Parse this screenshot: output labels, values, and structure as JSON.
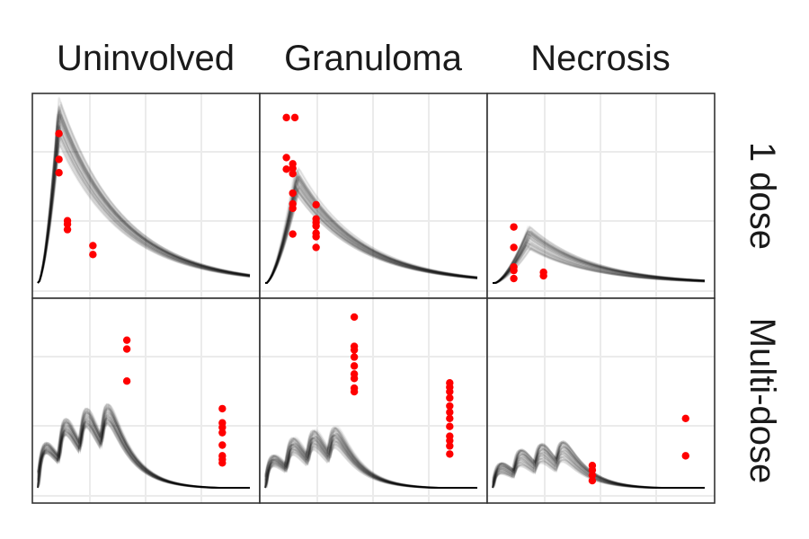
{
  "chart_data": {
    "type": "line",
    "column_labels": [
      "Uninvolved",
      "Granuloma",
      "Necrosis"
    ],
    "row_labels": [
      "1 dose",
      "Multi-dose"
    ],
    "colors": {
      "observed": "#ff0000",
      "simulated": "#000000",
      "grid": "#ebebeb",
      "frame": "#333333"
    },
    "grid": true,
    "xlim": [
      0,
      1
    ],
    "ylim": [
      0,
      1
    ],
    "simulation": {
      "n_curves": 60
    },
    "panels": [
      {
        "row": "1 dose",
        "column": "Uninvolved",
        "xlim": [
          0,
          1
        ],
        "ylim": [
          0,
          1
        ],
        "observed": [
          {
            "x": 0.1,
            "y": 0.845
          },
          {
            "x": 0.1,
            "y": 0.7
          },
          {
            "x": 0.1,
            "y": 0.625
          },
          {
            "x": 0.14,
            "y": 0.355
          },
          {
            "x": 0.14,
            "y": 0.335
          },
          {
            "x": 0.14,
            "y": 0.305
          },
          {
            "x": 0.26,
            "y": 0.215
          },
          {
            "x": 0.26,
            "y": 0.165
          }
        ],
        "model": {
          "type": "single",
          "peak_x": 0.1,
          "peak_y": 0.92,
          "rise": 3.0,
          "decay": 2.2,
          "spread": 0.08
        }
      },
      {
        "row": "1 dose",
        "column": "Granuloma",
        "xlim": [
          0,
          1
        ],
        "ylim": [
          0,
          1
        ],
        "observed": [
          {
            "x": 0.1,
            "y": 0.935
          },
          {
            "x": 0.14,
            "y": 0.935
          },
          {
            "x": 0.1,
            "y": 0.71
          },
          {
            "x": 0.13,
            "y": 0.675
          },
          {
            "x": 0.13,
            "y": 0.65
          },
          {
            "x": 0.1,
            "y": 0.645
          },
          {
            "x": 0.13,
            "y": 0.62
          },
          {
            "x": 0.13,
            "y": 0.51
          },
          {
            "x": 0.13,
            "y": 0.45
          },
          {
            "x": 0.13,
            "y": 0.425
          },
          {
            "x": 0.13,
            "y": 0.28
          },
          {
            "x": 0.24,
            "y": 0.445
          },
          {
            "x": 0.24,
            "y": 0.365
          },
          {
            "x": 0.24,
            "y": 0.345
          },
          {
            "x": 0.24,
            "y": 0.325
          },
          {
            "x": 0.24,
            "y": 0.285
          },
          {
            "x": 0.24,
            "y": 0.265
          },
          {
            "x": 0.24,
            "y": 0.205
          }
        ],
        "model": {
          "type": "single",
          "peak_x": 0.15,
          "peak_y": 0.58,
          "rise": 3.0,
          "decay": 2.2,
          "spread": 0.08
        }
      },
      {
        "row": "1 dose",
        "column": "Necrosis",
        "xlim": [
          0,
          1
        ],
        "ylim": [
          0,
          1
        ],
        "observed": [
          {
            "x": 0.1,
            "y": 0.32
          },
          {
            "x": 0.1,
            "y": 0.205
          },
          {
            "x": 0.1,
            "y": 0.095
          },
          {
            "x": 0.1,
            "y": 0.075
          },
          {
            "x": 0.1,
            "y": 0.03
          },
          {
            "x": 0.24,
            "y": 0.065
          },
          {
            "x": 0.24,
            "y": 0.045
          }
        ],
        "model": {
          "type": "single",
          "peak_x": 0.17,
          "peak_y": 0.26,
          "rise": 3.0,
          "decay": 2.2,
          "spread": 0.14
        }
      },
      {
        "row": "Multi-dose",
        "column": "Uninvolved",
        "xlim": [
          0,
          1
        ],
        "ylim": [
          0,
          1
        ],
        "observed": [
          {
            "x": 0.42,
            "y": 0.835
          },
          {
            "x": 0.42,
            "y": 0.785
          },
          {
            "x": 0.42,
            "y": 0.605
          },
          {
            "x": 0.87,
            "y": 0.45
          },
          {
            "x": 0.87,
            "y": 0.37
          },
          {
            "x": 0.87,
            "y": 0.345
          },
          {
            "x": 0.87,
            "y": 0.315
          },
          {
            "x": 0.87,
            "y": 0.245
          },
          {
            "x": 0.87,
            "y": 0.185
          },
          {
            "x": 0.87,
            "y": 0.165
          },
          {
            "x": 0.87,
            "y": 0.145
          }
        ],
        "model": {
          "type": "multi",
          "doses": 4,
          "interval": 0.1,
          "amp": 0.9,
          "decay": 1.1,
          "spread": 0.08
        }
      },
      {
        "row": "Multi-dose",
        "column": "Granuloma",
        "xlim": [
          0,
          1
        ],
        "ylim": [
          0,
          1
        ],
        "observed": [
          {
            "x": 0.42,
            "y": 0.965
          },
          {
            "x": 0.42,
            "y": 0.8
          },
          {
            "x": 0.42,
            "y": 0.78
          },
          {
            "x": 0.42,
            "y": 0.74
          },
          {
            "x": 0.42,
            "y": 0.69
          },
          {
            "x": 0.42,
            "y": 0.645
          },
          {
            "x": 0.42,
            "y": 0.62
          },
          {
            "x": 0.42,
            "y": 0.565
          },
          {
            "x": 0.42,
            "y": 0.545
          },
          {
            "x": 0.87,
            "y": 0.595
          },
          {
            "x": 0.87,
            "y": 0.57
          },
          {
            "x": 0.87,
            "y": 0.545
          },
          {
            "x": 0.87,
            "y": 0.51
          },
          {
            "x": 0.87,
            "y": 0.465
          },
          {
            "x": 0.87,
            "y": 0.43
          },
          {
            "x": 0.87,
            "y": 0.395
          },
          {
            "x": 0.87,
            "y": 0.35
          },
          {
            "x": 0.87,
            "y": 0.295
          },
          {
            "x": 0.87,
            "y": 0.27
          },
          {
            "x": 0.87,
            "y": 0.24
          },
          {
            "x": 0.87,
            "y": 0.195
          }
        ],
        "model": {
          "type": "multi",
          "doses": 4,
          "interval": 0.1,
          "amp": 0.62,
          "decay": 1.1,
          "spread": 0.12
        }
      },
      {
        "row": "Multi-dose",
        "column": "Necrosis",
        "xlim": [
          0,
          1
        ],
        "ylim": [
          0,
          1
        ],
        "observed": [
          {
            "x": 0.47,
            "y": 0.13
          },
          {
            "x": 0.47,
            "y": 0.105
          },
          {
            "x": 0.47,
            "y": 0.075
          },
          {
            "x": 0.47,
            "y": 0.045
          },
          {
            "x": 0.91,
            "y": 0.395
          },
          {
            "x": 0.91,
            "y": 0.185
          }
        ],
        "model": {
          "type": "multi",
          "doses": 4,
          "interval": 0.1,
          "amp": 0.45,
          "decay": 1.1,
          "spread": 0.16
        }
      }
    ]
  }
}
